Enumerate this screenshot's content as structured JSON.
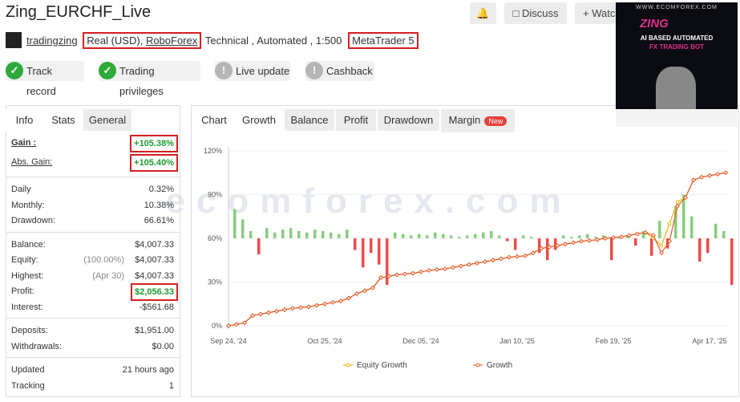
{
  "header": {
    "title": "Zing_EURCHF_Live",
    "user": "tradingzing",
    "account_type": "Real (USD),",
    "broker": "RoboForex",
    "details": "Technical , Automated , 1:500",
    "platform": "MetaTrader 5",
    "buttons": [
      "Discuss",
      "Watc"
    ]
  },
  "badges": [
    {
      "label": "Track record",
      "verified": true
    },
    {
      "label": "Trading privileges",
      "verified": true
    },
    {
      "label": "Live update",
      "verified": false
    },
    {
      "label": "Cashback",
      "verified": false
    }
  ],
  "stats_tabs": [
    "Info",
    "Stats",
    "General"
  ],
  "stats_active": 1,
  "stats": [
    [
      {
        "label": "Gain :",
        "value": "+105.38%",
        "color": "#1e9b2e",
        "boxed": true
      },
      {
        "label": "Abs. Gain:",
        "value": "+105.40%",
        "color": "#1e9b2e",
        "boxed": true
      }
    ],
    [
      {
        "label": "Daily",
        "value": "0.32%"
      },
      {
        "label": "Monthly:",
        "value": "10.38%"
      },
      {
        "label": "Drawdown:",
        "value": "66.61%"
      }
    ],
    [
      {
        "label": "Balance:",
        "value": "$4,007.33"
      },
      {
        "label": "Equity:",
        "note": "(100.00%)",
        "value": "$4,007.33"
      },
      {
        "label": "Highest:",
        "note": "(Apr 30)",
        "value": "$4,007.33"
      },
      {
        "label": "Profit:",
        "value": "$2,056.33",
        "color": "#1e9b2e",
        "boxed": true
      },
      {
        "label": "Interest:",
        "value": "-$561.68"
      }
    ],
    [
      {
        "label": "Deposits:",
        "value": "$1,951.00"
      },
      {
        "label": "Withdrawals:",
        "value": "$0.00"
      }
    ],
    [
      {
        "label": "Updated",
        "value": "21 hours ago"
      },
      {
        "label": "Tracking",
        "value": "1"
      }
    ]
  ],
  "chart_tabs": [
    "Chart",
    "Growth",
    "Balance",
    "Profit",
    "Drawdown",
    "Margin"
  ],
  "chart_tab_active": 1,
  "new_badge": "New",
  "chart_data": {
    "type": "line",
    "categories": [
      "Sep 24, '24",
      null,
      null,
      null,
      null,
      null,
      null,
      null,
      null,
      null,
      null,
      null,
      "Oct 25, '24",
      null,
      null,
      null,
      null,
      null,
      null,
      null,
      null,
      null,
      null,
      null,
      "Dec 05, '24",
      null,
      null,
      null,
      null,
      null,
      null,
      null,
      null,
      null,
      null,
      null,
      "Jan 10, '25",
      null,
      null,
      null,
      null,
      null,
      null,
      null,
      null,
      null,
      null,
      null,
      "Feb 19, '25",
      null,
      null,
      null,
      null,
      null,
      null,
      null,
      null,
      null,
      null,
      null,
      "Apr 17, '25",
      null,
      null
    ],
    "series": [
      {
        "name": "Equity Growth",
        "color": "#f2b200",
        "values": [
          0,
          1,
          2,
          7,
          8,
          9,
          10,
          11,
          12,
          12.5,
          13,
          14,
          15,
          16,
          17,
          19,
          22,
          24,
          26,
          33,
          34,
          35,
          35.5,
          36,
          37,
          38,
          38.5,
          39,
          40,
          41,
          42,
          43,
          44,
          45,
          46,
          47,
          47.5,
          48,
          50,
          53,
          54,
          55,
          56,
          57,
          58,
          58.5,
          59,
          60,
          60.5,
          61,
          62,
          63,
          64,
          60,
          55,
          70,
          85,
          88,
          100,
          102,
          103,
          104,
          105
        ]
      },
      {
        "name": "Growth",
        "color": "#e8552b",
        "values": [
          0,
          1,
          2,
          7,
          8,
          9,
          10,
          11,
          12,
          12.5,
          13,
          14,
          15,
          16,
          17,
          19,
          22,
          24,
          26,
          33,
          34,
          35,
          35.5,
          36,
          37,
          38,
          38.5,
          39,
          40,
          41,
          42,
          43,
          44,
          45,
          46,
          47,
          47.5,
          48,
          50,
          53,
          54,
          55,
          56,
          57,
          58,
          58.5,
          59,
          60,
          60.5,
          61,
          62,
          63,
          64,
          62,
          50,
          58,
          82,
          88,
          100,
          102,
          103,
          104,
          105
        ]
      }
    ],
    "bars": {
      "up_color": "#86cd7e",
      "down_color": "#ee4b4b",
      "values": [
        80,
        73,
        65,
        49,
        67,
        64,
        66,
        67,
        65,
        64,
        66,
        65,
        64,
        63,
        66,
        52,
        40,
        50,
        42,
        28,
        64,
        63,
        62,
        63,
        62,
        64,
        63,
        62,
        61,
        62,
        63,
        64,
        65,
        62,
        58,
        52,
        62,
        61,
        50,
        45,
        52,
        62,
        61,
        62,
        63,
        61,
        62,
        45,
        61,
        62,
        55,
        65,
        48,
        72,
        53,
        82,
        90,
        75,
        44,
        50,
        70,
        65,
        28
      ]
    },
    "ylim": [
      0,
      120
    ],
    "yticks": [
      {
        "value": 0,
        "label": "0%"
      },
      {
        "value": 30,
        "label": "30%"
      },
      {
        "value": 60,
        "label": "60%"
      },
      {
        "value": 90,
        "label": "90%"
      },
      {
        "value": 120,
        "label": "120%"
      }
    ],
    "grid": true
  },
  "ad": {
    "site": "WWW.ECOMFOREX.COM",
    "brand": "ZING",
    "headline": "AI BASED AUTOMATED",
    "subline": "FX TRADING BOT"
  },
  "watermark": "ecomforex.com"
}
